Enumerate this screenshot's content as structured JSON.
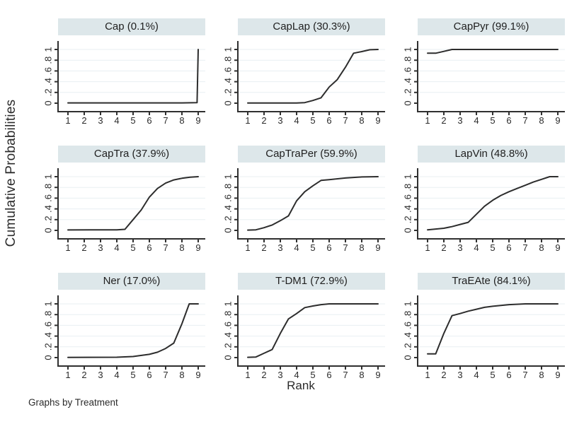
{
  "figure": {
    "ylabel": "Cumulative Probabilities",
    "xlabel": "Rank",
    "footer": "Graphs by Treatment",
    "y_ticks": [
      "0",
      ".2",
      ".4",
      ".6",
      ".8",
      "1"
    ],
    "x_ticks": [
      "1",
      "2",
      "3",
      "4",
      "5",
      "6",
      "7",
      "8",
      "9"
    ],
    "ylim": [
      0,
      1
    ],
    "xlim": [
      1,
      9
    ],
    "grid": "horizontal-only",
    "legend": "none"
  },
  "colors": {
    "band_bg": "#dde7ea",
    "grid": "#e8eff2",
    "axis": "#303030",
    "line": "#2d2d2d",
    "text": "#242424"
  },
  "chart_data": [
    {
      "type": "line",
      "title": "Cap (0.1%)",
      "treatment": "Cap",
      "sucra_percent": 0.1,
      "categories": [
        1,
        2,
        3,
        4,
        5,
        6,
        7,
        8,
        9
      ],
      "values": [
        0,
        0,
        0,
        0,
        0,
        0,
        0,
        0,
        1
      ],
      "trace": [
        [
          1,
          0.005
        ],
        [
          8,
          0.005
        ],
        [
          8.93,
          0.01
        ],
        [
          9,
          1.0
        ]
      ]
    },
    {
      "type": "line",
      "title": "CapLap (30.3%)",
      "treatment": "CapLap",
      "sucra_percent": 30.3,
      "categories": [
        1,
        2,
        3,
        4,
        5,
        6,
        7,
        8,
        9
      ],
      "values": [
        0,
        0,
        0,
        0,
        0.05,
        0.3,
        0.67,
        0.96,
        1
      ],
      "trace": [
        [
          1,
          0.003
        ],
        [
          4,
          0.003
        ],
        [
          4.5,
          0.01
        ],
        [
          5,
          0.05
        ],
        [
          5.5,
          0.1
        ],
        [
          6,
          0.3
        ],
        [
          6.5,
          0.44
        ],
        [
          7,
          0.67
        ],
        [
          7.5,
          0.93
        ],
        [
          8,
          0.96
        ],
        [
          8.5,
          0.995
        ],
        [
          9,
          1.0
        ]
      ]
    },
    {
      "type": "line",
      "title": "CapPyr (99.1%)",
      "treatment": "CapPyr",
      "sucra_percent": 99.1,
      "categories": [
        1,
        2,
        3,
        4,
        5,
        6,
        7,
        8,
        9
      ],
      "values": [
        0.93,
        0.97,
        1,
        1,
        1,
        1,
        1,
        1,
        1
      ],
      "trace": [
        [
          1,
          0.93
        ],
        [
          1.5,
          0.93
        ],
        [
          2,
          0.965
        ],
        [
          2.5,
          1.0
        ],
        [
          9,
          1.0
        ]
      ]
    },
    {
      "type": "line",
      "title": "CapTra (37.9%)",
      "treatment": "CapTra",
      "sucra_percent": 37.9,
      "categories": [
        1,
        2,
        3,
        4,
        5,
        6,
        7,
        8,
        9
      ],
      "values": [
        0.01,
        0.01,
        0.01,
        0.01,
        0.2,
        0.62,
        0.88,
        0.97,
        1
      ],
      "trace": [
        [
          1,
          0.008
        ],
        [
          4,
          0.01
        ],
        [
          4.5,
          0.02
        ],
        [
          5,
          0.2
        ],
        [
          5.5,
          0.38
        ],
        [
          6,
          0.62
        ],
        [
          6.5,
          0.78
        ],
        [
          7,
          0.88
        ],
        [
          7.5,
          0.94
        ],
        [
          8,
          0.97
        ],
        [
          8.5,
          0.99
        ],
        [
          9,
          1.0
        ]
      ]
    },
    {
      "type": "line",
      "title": "CapTraPer (59.9%)",
      "treatment": "CapTraPer",
      "sucra_percent": 59.9,
      "categories": [
        1,
        2,
        3,
        4,
        5,
        6,
        7,
        8,
        9
      ],
      "values": [
        0.01,
        0.05,
        0.18,
        0.55,
        0.83,
        0.95,
        0.98,
        0.99,
        1
      ],
      "trace": [
        [
          1,
          0.005
        ],
        [
          1.5,
          0.01
        ],
        [
          2,
          0.05
        ],
        [
          2.5,
          0.1
        ],
        [
          3,
          0.18
        ],
        [
          3.5,
          0.27
        ],
        [
          4,
          0.55
        ],
        [
          4.5,
          0.72
        ],
        [
          5,
          0.83
        ],
        [
          5.5,
          0.93
        ],
        [
          6,
          0.945
        ],
        [
          7,
          0.975
        ],
        [
          8,
          0.995
        ],
        [
          9,
          1.0
        ]
      ]
    },
    {
      "type": "line",
      "title": "LapVin (48.8%)",
      "treatment": "LapVin",
      "sucra_percent": 48.8,
      "categories": [
        1,
        2,
        3,
        4,
        5,
        6,
        7,
        8,
        9
      ],
      "values": [
        0.01,
        0.04,
        0.11,
        0.3,
        0.56,
        0.72,
        0.84,
        0.95,
        1
      ],
      "trace": [
        [
          1,
          0.01
        ],
        [
          2,
          0.04
        ],
        [
          2.5,
          0.07
        ],
        [
          3,
          0.11
        ],
        [
          3.5,
          0.15
        ],
        [
          4,
          0.3
        ],
        [
          4.5,
          0.45
        ],
        [
          5,
          0.56
        ],
        [
          5.5,
          0.65
        ],
        [
          6,
          0.72
        ],
        [
          6.5,
          0.78
        ],
        [
          7,
          0.84
        ],
        [
          7.5,
          0.9
        ],
        [
          8,
          0.95
        ],
        [
          8.5,
          1.0
        ],
        [
          9,
          1.0
        ]
      ]
    },
    {
      "type": "line",
      "title": "Ner (17.0%)",
      "treatment": "Ner",
      "sucra_percent": 17.0,
      "categories": [
        1,
        2,
        3,
        4,
        5,
        6,
        7,
        8,
        9
      ],
      "values": [
        0,
        0,
        0,
        0.01,
        0.02,
        0.06,
        0.17,
        0.63,
        1
      ],
      "trace": [
        [
          1,
          0.004
        ],
        [
          4,
          0.006
        ],
        [
          5,
          0.02
        ],
        [
          6,
          0.06
        ],
        [
          6.5,
          0.1
        ],
        [
          7,
          0.17
        ],
        [
          7.5,
          0.27
        ],
        [
          8,
          0.63
        ],
        [
          8.45,
          1.0
        ],
        [
          9,
          1.0
        ]
      ]
    },
    {
      "type": "line",
      "title": "T-DM1 (72.9%)",
      "treatment": "T-DM1",
      "sucra_percent": 72.9,
      "categories": [
        1,
        2,
        3,
        4,
        5,
        6,
        7,
        8,
        9
      ],
      "values": [
        0.01,
        0.08,
        0.45,
        0.82,
        0.96,
        1,
        1,
        1,
        1
      ],
      "trace": [
        [
          1,
          0.005
        ],
        [
          1.5,
          0.01
        ],
        [
          2,
          0.08
        ],
        [
          2.5,
          0.15
        ],
        [
          3,
          0.45
        ],
        [
          3.5,
          0.72
        ],
        [
          4,
          0.82
        ],
        [
          4.5,
          0.93
        ],
        [
          5,
          0.96
        ],
        [
          5.5,
          0.985
        ],
        [
          6,
          1.0
        ],
        [
          9,
          1.0
        ]
      ]
    },
    {
      "type": "line",
      "title": "TraEAte (84.1%)",
      "treatment": "TraEAte",
      "sucra_percent": 84.1,
      "categories": [
        1,
        2,
        3,
        4,
        5,
        6,
        7,
        8,
        9
      ],
      "values": [
        0.07,
        0.45,
        0.82,
        0.9,
        0.96,
        0.99,
        1,
        1,
        1
      ],
      "trace": [
        [
          1,
          0.07
        ],
        [
          1.5,
          0.07
        ],
        [
          2,
          0.45
        ],
        [
          2.5,
          0.78
        ],
        [
          3,
          0.82
        ],
        [
          3.5,
          0.865
        ],
        [
          4,
          0.9
        ],
        [
          4.5,
          0.935
        ],
        [
          5,
          0.955
        ],
        [
          5.5,
          0.97
        ],
        [
          6,
          0.985
        ],
        [
          7,
          1.0
        ],
        [
          9,
          1.0
        ]
      ]
    }
  ]
}
